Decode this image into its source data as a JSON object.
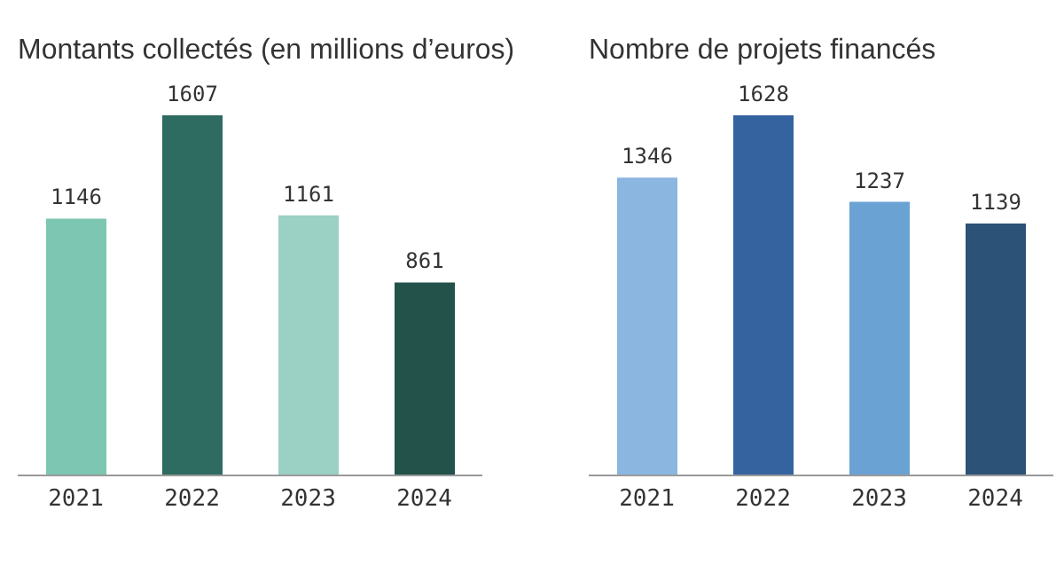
{
  "chart_data": [
    {
      "type": "bar",
      "title": "Montants collectés (en millions d’euros)",
      "categories": [
        "2021",
        "2022",
        "2023",
        "2024"
      ],
      "values": [
        1146,
        1607,
        1161,
        861
      ],
      "colors": [
        "#7dc6b1",
        "#2e6b60",
        "#9bd0c4",
        "#22524a"
      ],
      "data_labels": true
    },
    {
      "type": "bar",
      "title": "Nombre de projets financés",
      "categories": [
        "2021",
        "2022",
        "2023",
        "2024"
      ],
      "values": [
        1346,
        1628,
        1237,
        1139
      ],
      "colors": [
        "#8ab6e0",
        "#3563a0",
        "#6aa2d4",
        "#2c5277"
      ],
      "data_labels": true
    }
  ]
}
